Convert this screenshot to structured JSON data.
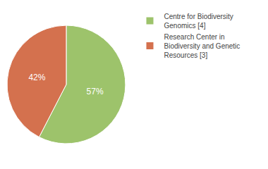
{
  "chart_data": {
    "type": "pie",
    "categories": [
      "Centre for Biodiversity\nGenomics [4]",
      "Research Center in\nBiodiversity and Genetic\nResources [3]"
    ],
    "values": [
      57,
      42
    ],
    "value_labels": [
      "57%",
      "42%"
    ],
    "colors": [
      "#9dc36b",
      "#d4714e"
    ],
    "data_labels": true,
    "legend": "right"
  }
}
